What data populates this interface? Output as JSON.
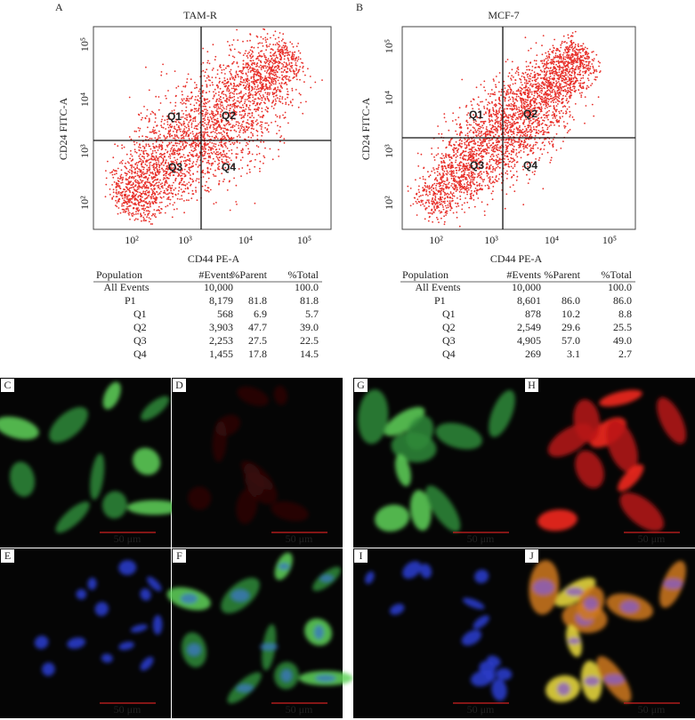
{
  "panels": [
    {
      "letter": "A",
      "title": "TAM-R",
      "y_label": "CD24 FITC-A",
      "x_label": "CD44 PE-A",
      "y_ticks": [
        "10⁵",
        "10⁴",
        "10³",
        "10²"
      ],
      "x_ticks": [
        "10²",
        "10³",
        "10⁴",
        "10⁵"
      ],
      "quadrants": [
        "Q1",
        "Q2",
        "Q3",
        "Q4"
      ],
      "table": {
        "header": [
          "Population",
          "#Events",
          "%Parent",
          "%Total"
        ],
        "rows": [
          {
            "population": "All Events",
            "events": "10,000",
            "total": "100.0"
          },
          {
            "population": "P1",
            "events": "8,179",
            "parent": "81.8",
            "total": "81.8"
          },
          {
            "population": "Q1",
            "events": "568",
            "parent": "6.9",
            "total": "5.7"
          },
          {
            "population": "Q2",
            "events": "3,903",
            "parent": "47.7",
            "total": "39.0"
          },
          {
            "population": "Q3",
            "events": "2,253",
            "parent": "27.5",
            "total": "22.5"
          },
          {
            "population": "Q4",
            "events": "1,455",
            "parent": "17.8",
            "total": "14.5"
          }
        ]
      }
    },
    {
      "letter": "B",
      "title": "MCF-7",
      "y_label": "CD24 FITC-A",
      "x_label": "CD44 PE-A",
      "y_ticks": [
        "10⁵",
        "10⁴",
        "10³",
        "10²"
      ],
      "x_ticks": [
        "10²",
        "10³",
        "10⁴",
        "10⁵"
      ],
      "quadrants": [
        "Q1",
        "Q2",
        "Q3",
        "Q4"
      ],
      "table": {
        "header": [
          "Population",
          "#Events",
          "%Parent",
          "%Total"
        ],
        "rows": [
          {
            "population": "All Events",
            "events": "10,000",
            "total": "100.0"
          },
          {
            "population": "P1",
            "events": "8,601",
            "parent": "86.0",
            "total": "86.0"
          },
          {
            "population": "Q1",
            "events": "878",
            "parent": "10.2",
            "total": "8.8"
          },
          {
            "population": "Q2",
            "events": "2,549",
            "parent": "29.6",
            "total": "25.5"
          },
          {
            "population": "Q3",
            "events": "4,905",
            "parent": "57.0",
            "total": "49.0"
          },
          {
            "population": "Q4",
            "events": "269",
            "parent": "3.1",
            "total": "2.7"
          }
        ]
      }
    }
  ],
  "micrographs": [
    {
      "letter": "C",
      "scale": "50 μm"
    },
    {
      "letter": "D",
      "scale": "50 μm"
    },
    {
      "letter": "E",
      "scale": "50 μm"
    },
    {
      "letter": "F",
      "scale": "50 μm"
    },
    {
      "letter": "G",
      "scale": "50 μm"
    },
    {
      "letter": "H",
      "scale": "50 μm"
    },
    {
      "letter": "I",
      "scale": "50 μm"
    },
    {
      "letter": "J",
      "scale": "50 μm"
    }
  ]
}
